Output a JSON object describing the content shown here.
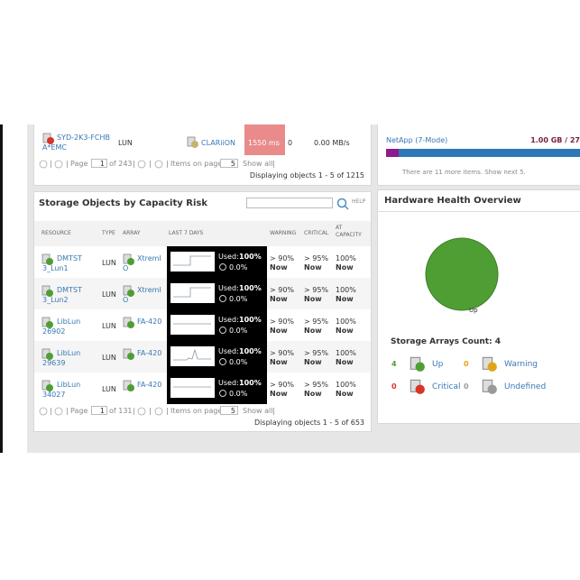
{
  "top_table": {
    "row": {
      "resource": "SYD-2K3-FCHB A*EMC",
      "type": "LUN",
      "array": "CLARiiON",
      "latency": "1550 ms",
      "iops": "0",
      "throughput": "0.00 MB/s"
    },
    "pager": {
      "page_label": "Page",
      "page": "1",
      "of": "of 243",
      "items_label": "Items on page",
      "items": "5",
      "show_all": "Show all"
    },
    "displaying": "Displaying objects 1 - 5 of 1215"
  },
  "netapp": {
    "name": "NetApp (7-Mode)",
    "capacity": "1.00 GB / 27",
    "more": "There are 11 more items. Show next 5."
  },
  "capacity_risk": {
    "title": "Storage Objects by Capacity Risk",
    "help": "HELP",
    "columns": [
      "RESOURCE",
      "TYPE",
      "ARRAY",
      "LAST 7 DAYS",
      "WARNING",
      "CRITICAL",
      "AT CAPACITY"
    ],
    "used_label": "Used:",
    "rows": [
      {
        "resource": "DMTST3_Lun1",
        "type": "LUN",
        "array": "XtremIO",
        "used": "100%",
        "change": "0.0%",
        "warning": "> 90%",
        "warning_time": "Now",
        "critical": "> 95%",
        "critical_time": "Now",
        "at_capacity": "100%",
        "at_capacity_time": "Now"
      },
      {
        "resource": "DMTST3_Lun2",
        "type": "LUN",
        "array": "XtremIO",
        "used": "100%",
        "change": "0.0%",
        "warning": "> 90%",
        "warning_time": "Now",
        "critical": "> 95%",
        "critical_time": "Now",
        "at_capacity": "100%",
        "at_capacity_time": "Now"
      },
      {
        "resource": "LibLun26902",
        "type": "LUN",
        "array": "FA-420",
        "used": "100%",
        "change": "0.0%",
        "warning": "> 90%",
        "warning_time": "Now",
        "critical": "> 95%",
        "critical_time": "Now",
        "at_capacity": "100%",
        "at_capacity_time": "Now"
      },
      {
        "resource": "LibLun29639",
        "type": "LUN",
        "array": "FA-420",
        "used": "100%",
        "change": "0.0%",
        "warning": "> 90%",
        "warning_time": "Now",
        "critical": "> 95%",
        "critical_time": "Now",
        "at_capacity": "100%",
        "at_capacity_time": "Now"
      },
      {
        "resource": "LibLun34027",
        "type": "LUN",
        "array": "FA-420",
        "used": "100%",
        "change": "0.0%",
        "warning": "> 90%",
        "warning_time": "Now",
        "critical": "> 95%",
        "critical_time": "Now",
        "at_capacity": "100%",
        "at_capacity_time": "Now"
      }
    ],
    "pager": {
      "page_label": "Page",
      "page": "1",
      "of": "of 131",
      "items_label": "Items on page",
      "items": "5",
      "show_all": "Show all"
    },
    "displaying": "Displaying objects 1 - 5 of 653"
  },
  "hardware_health": {
    "title": "Hardware Health Overview",
    "pie_label": "Up",
    "count_label": "Storage Arrays Count: 4",
    "statuses": [
      {
        "count": 4,
        "label": "Up",
        "color": "#4e9e34"
      },
      {
        "count": 0,
        "label": "Warning",
        "color": "#e0a516"
      },
      {
        "count": 0,
        "label": "Critical",
        "color": "#d8342a"
      },
      {
        "count": 0,
        "label": "Undefined",
        "color": "#9a9a9a"
      }
    ]
  }
}
